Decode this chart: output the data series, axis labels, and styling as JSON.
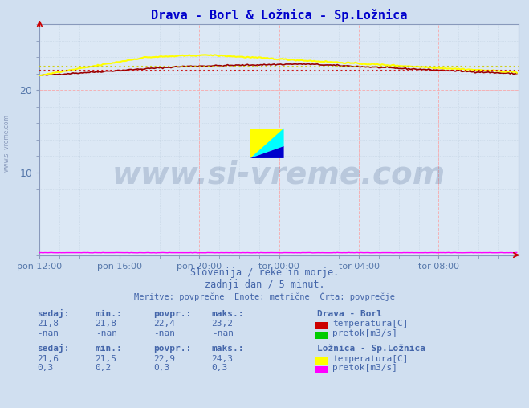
{
  "title": "Drava - Borl & Ložnica - Sp.Ložnica",
  "title_color": "#0000cc",
  "bg_color": "#d0dff0",
  "plot_bg_color": "#dce8f5",
  "grid_color_major": "#ff9999",
  "grid_color_minor": "#bbccdd",
  "ylabel_color": "#5577aa",
  "xlabel_color": "#5577aa",
  "n_points": 288,
  "xlim": [
    0,
    288
  ],
  "ylim": [
    0,
    28
  ],
  "yticks": [
    10,
    20
  ],
  "xtick_labels": [
    "pon 12:00",
    "pon 16:00",
    "pon 20:00",
    "tor 00:00",
    "tor 04:00",
    "tor 08:00"
  ],
  "xtick_positions": [
    0,
    48,
    96,
    144,
    192,
    240
  ],
  "drava_temp_color": "#990000",
  "drava_temp_avg": 22.4,
  "drava_temp_min": 21.8,
  "drava_temp_max": 23.2,
  "loznica_temp_color": "#ffff00",
  "loznica_temp_avg": 22.9,
  "loznica_temp_min": 21.5,
  "loznica_temp_max": 24.3,
  "loznica_pretok_color": "#ff00ff",
  "loznica_pretok_avg": 0.3,
  "loznica_pretok_min": 0.2,
  "loznica_pretok_max": 0.3,
  "avg_line_color_drava": "#cc0000",
  "avg_line_color_loznica": "#cccc00",
  "watermark_text": "www.si-vreme.com",
  "watermark_color": "#1a3a6e",
  "watermark_alpha": 0.18,
  "footnote1": "Slovenija / reke in morje.",
  "footnote2": "zadnji dan / 5 minut.",
  "footnote3": "Meritve: povprečne  Enote: metrične  Črta: povprečje",
  "footnote_color": "#4466aa",
  "label_color": "#4466aa",
  "sidebar_text": "www.si-vreme.com",
  "sidebar_color": "#8899bb",
  "spine_color": "#8899bb",
  "axis_arrow_color": "#cc0000"
}
